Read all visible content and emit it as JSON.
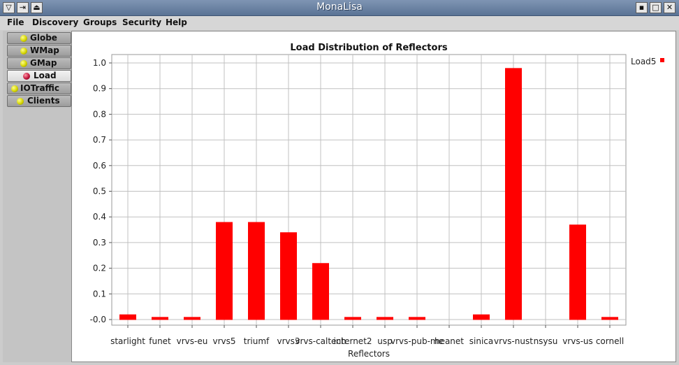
{
  "window": {
    "title": "MonaLisa",
    "left_buttons": [
      "▽",
      "⇥",
      "⏏"
    ],
    "right_buttons": [
      "▪",
      "□",
      "✕"
    ]
  },
  "menu": [
    "File",
    "Discovery",
    "Groups",
    "Security",
    "Help"
  ],
  "tabs": [
    {
      "label": "Globe",
      "active": false
    },
    {
      "label": "WMap",
      "active": false
    },
    {
      "label": "GMap",
      "active": false
    },
    {
      "label": "Load",
      "active": true
    },
    {
      "label": "IOTraffic",
      "active": false
    },
    {
      "label": "Clients",
      "active": false
    }
  ],
  "colors": {
    "bar": "#ff0000",
    "grid": "#c0c0c0",
    "active_tab_dot": "#c0143c",
    "tab_dot": "#d4d400"
  },
  "chart_data": {
    "type": "bar",
    "title": "Load Distribution of Reflectors",
    "xlabel": "Reflectors",
    "ylabel": "",
    "ylim": [
      0,
      1.0
    ],
    "yticks": [
      "-0.0",
      "0.1",
      "0.2",
      "0.3",
      "0.4",
      "0.5",
      "0.6",
      "0.7",
      "0.8",
      "0.9",
      "1.0"
    ],
    "grid": true,
    "legend_position": "top-right",
    "categories": [
      "starlight",
      "funet",
      "vrvs-eu",
      "vrvs5",
      "triumf",
      "vrvs3",
      "vrvs-caltech",
      "internet2",
      "usp",
      "vrvs-pub-me",
      "heanet",
      "sinica",
      "vrvs-nust",
      "nsysu",
      "vrvs-us",
      "cornell"
    ],
    "series": [
      {
        "name": "Load5",
        "values": [
          0.02,
          0.01,
          0.01,
          0.38,
          0.38,
          0.34,
          0.22,
          0.01,
          0.01,
          0.01,
          0.0,
          0.02,
          0.98,
          0.0,
          0.37,
          0.01
        ]
      }
    ]
  }
}
